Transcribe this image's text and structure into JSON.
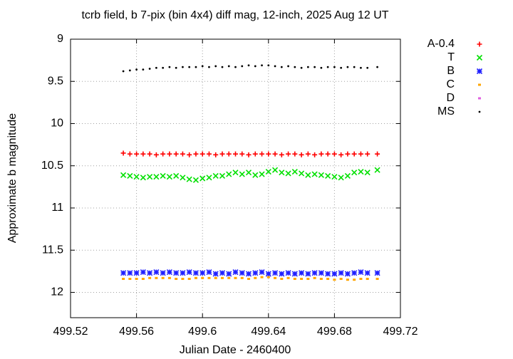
{
  "chart_data": {
    "type": "scatter",
    "title": "tcrb field, b 7-pix (bin 4x4) diff mag, 12-inch, 2025 Aug 12 UT",
    "x_label": "Julian Date - 2460400",
    "y_label": "Approximate b magnitude",
    "xlim": [
      499.52,
      499.72
    ],
    "ylim": [
      12.3,
      9
    ],
    "xticks": [
      499.52,
      499.56,
      499.6,
      499.64,
      499.68,
      499.72
    ],
    "yticks": [
      9,
      9.5,
      10,
      10.5,
      11,
      11.5,
      12
    ],
    "grid": true,
    "legend": "outside-right",
    "x": [
      499.552,
      499.556,
      499.56,
      499.564,
      499.568,
      499.572,
      499.576,
      499.58,
      499.584,
      499.588,
      499.592,
      499.596,
      499.6,
      499.604,
      499.608,
      499.612,
      499.616,
      499.62,
      499.624,
      499.628,
      499.632,
      499.636,
      499.64,
      499.644,
      499.648,
      499.652,
      499.656,
      499.66,
      499.664,
      499.668,
      499.672,
      499.676,
      499.68,
      499.684,
      499.688,
      499.692,
      499.696,
      499.7,
      499.706
    ],
    "series": [
      {
        "name": "A-0.4",
        "color": "#ff0000",
        "marker": "plus",
        "values": [
          10.35,
          10.36,
          10.36,
          10.36,
          10.36,
          10.37,
          10.36,
          10.36,
          10.36,
          10.36,
          10.37,
          10.36,
          10.36,
          10.36,
          10.37,
          10.36,
          10.36,
          10.36,
          10.36,
          10.37,
          10.36,
          10.36,
          10.36,
          10.36,
          10.37,
          10.36,
          10.36,
          10.37,
          10.36,
          10.37,
          10.36,
          10.36,
          10.36,
          10.37,
          10.36,
          10.36,
          10.36,
          10.36,
          10.36
        ]
      },
      {
        "name": "T",
        "color": "#00e000",
        "marker": "cross",
        "values": [
          10.61,
          10.62,
          10.63,
          10.64,
          10.63,
          10.63,
          10.62,
          10.63,
          10.62,
          10.64,
          10.66,
          10.67,
          10.65,
          10.64,
          10.62,
          10.62,
          10.6,
          10.58,
          10.6,
          10.58,
          10.61,
          10.6,
          10.57,
          10.55,
          10.58,
          10.59,
          10.57,
          10.59,
          10.61,
          10.6,
          10.61,
          10.62,
          10.63,
          10.64,
          10.62,
          10.58,
          10.57,
          10.58,
          10.55
        ]
      },
      {
        "name": "B",
        "color": "#2020ff",
        "marker": "star",
        "values": [
          11.77,
          11.77,
          11.77,
          11.76,
          11.77,
          11.76,
          11.77,
          11.76,
          11.77,
          11.77,
          11.76,
          11.77,
          11.77,
          11.76,
          11.78,
          11.77,
          11.78,
          11.76,
          11.77,
          11.78,
          11.77,
          11.76,
          11.78,
          11.77,
          11.78,
          11.77,
          11.78,
          11.77,
          11.78,
          11.77,
          11.77,
          11.78,
          11.78,
          11.77,
          11.78,
          11.77,
          11.76,
          11.77,
          11.77
        ]
      },
      {
        "name": "C",
        "color": "#ffa500",
        "marker": "square",
        "values": [
          11.84,
          11.84,
          11.84,
          11.84,
          11.83,
          11.83,
          11.83,
          11.83,
          11.84,
          11.84,
          11.84,
          11.83,
          11.83,
          11.83,
          11.83,
          11.83,
          11.83,
          11.83,
          11.83,
          11.84,
          11.83,
          11.82,
          11.82,
          11.83,
          11.84,
          11.83,
          11.84,
          11.84,
          11.84,
          11.83,
          11.84,
          11.84,
          11.85,
          11.84,
          11.85,
          11.85,
          11.84,
          11.84,
          11.84
        ]
      },
      {
        "name": "D",
        "color": "#e060e0",
        "marker": "square",
        "values": [
          null,
          null,
          null,
          null,
          null,
          null,
          null,
          null,
          null,
          null,
          null,
          null,
          null,
          null,
          null,
          null,
          null,
          null,
          null,
          null,
          null,
          null,
          null,
          null,
          null,
          null,
          null,
          null,
          null,
          null,
          null,
          null,
          null,
          null,
          null,
          null,
          null,
          null,
          null
        ]
      },
      {
        "name": "MS",
        "color": "#000000",
        "marker": "dot",
        "values": [
          9.38,
          9.37,
          9.36,
          9.36,
          9.35,
          9.34,
          9.34,
          9.33,
          9.34,
          9.33,
          9.33,
          9.33,
          9.32,
          9.33,
          9.32,
          9.33,
          9.32,
          9.33,
          9.32,
          9.31,
          9.32,
          9.31,
          9.31,
          9.32,
          9.33,
          9.32,
          9.33,
          9.34,
          9.33,
          9.33,
          9.34,
          9.33,
          9.33,
          9.34,
          9.33,
          9.33,
          9.34,
          9.34,
          9.33
        ]
      }
    ]
  }
}
